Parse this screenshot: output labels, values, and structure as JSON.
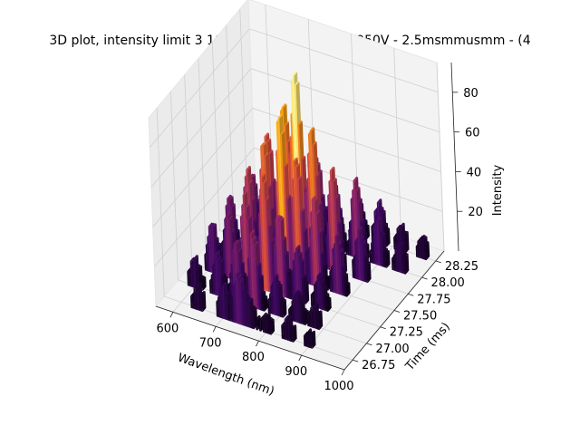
{
  "chart_data": {
    "type": "bar3d",
    "title": "3D plot, intensity limit 3 10umVertical - 200Hz - 950V - 2.5msmmusmm - (4",
    "xlabel": "Wavelength (nm)",
    "ylabel": "Time (ms)",
    "zlabel": "Intensity",
    "xlim": [
      560,
      1000
    ],
    "ylim": [
      26.6,
      28.4
    ],
    "zlim": [
      0,
      95
    ],
    "x_ticks": [
      "600",
      "700",
      "800",
      "900",
      "1000"
    ],
    "y_ticks": [
      "26.75",
      "27.00",
      "27.25",
      "27.50",
      "27.75",
      "28.00",
      "28.25"
    ],
    "z_ticks": [
      "20",
      "40",
      "60",
      "80"
    ],
    "colormap": "inferno",
    "grid": true,
    "series": [
      {
        "time": 26.75,
        "peaks": [
          [
            640,
            9
          ],
          [
            700,
            14
          ],
          [
            735,
            22
          ],
          [
            760,
            10
          ],
          [
            800,
            6
          ],
          [
            850,
            8
          ],
          [
            900,
            5
          ]
        ]
      },
      {
        "time": 27.0,
        "peaks": [
          [
            600,
            12
          ],
          [
            655,
            18
          ],
          [
            700,
            28
          ],
          [
            740,
            35
          ],
          [
            790,
            16
          ],
          [
            840,
            12
          ],
          [
            880,
            8
          ]
        ]
      },
      {
        "time": 27.25,
        "peaks": [
          [
            610,
            22
          ],
          [
            650,
            30
          ],
          [
            690,
            42
          ],
          [
            735,
            55
          ],
          [
            770,
            38
          ],
          [
            810,
            24
          ],
          [
            860,
            14
          ]
        ]
      },
      {
        "time": 27.5,
        "peaks": [
          [
            620,
            28
          ],
          [
            665,
            45
          ],
          [
            705,
            62
          ],
          [
            745,
            78
          ],
          [
            780,
            58
          ],
          [
            820,
            42
          ],
          [
            870,
            26
          ]
        ]
      },
      {
        "time": 27.75,
        "peaks": [
          [
            640,
            32
          ],
          [
            680,
            55
          ],
          [
            720,
            72
          ],
          [
            750,
            92
          ],
          [
            785,
            66
          ],
          [
            830,
            48
          ],
          [
            890,
            22
          ]
        ]
      },
      {
        "time": 28.0,
        "peaks": [
          [
            700,
            18
          ],
          [
            760,
            40
          ],
          [
            800,
            30
          ],
          [
            850,
            36
          ],
          [
            900,
            20
          ],
          [
            950,
            12
          ]
        ]
      },
      {
        "time": 28.25,
        "peaks": [
          [
            760,
            12
          ],
          [
            820,
            16
          ],
          [
            870,
            18
          ],
          [
            920,
            10
          ],
          [
            970,
            8
          ]
        ]
      }
    ]
  }
}
